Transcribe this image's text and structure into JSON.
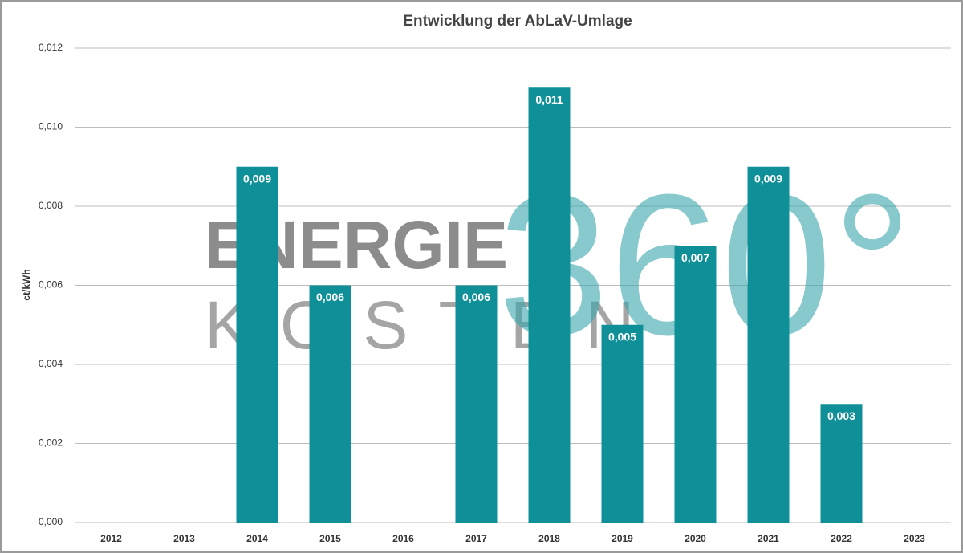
{
  "chart_data": {
    "type": "bar",
    "title": "Entwicklung der AbLaV-Umlage",
    "y_label": "ct/kWh",
    "categories": [
      "2012",
      "2013",
      "2014",
      "2015",
      "2016",
      "2017",
      "2018",
      "2019",
      "2020",
      "2021",
      "2022",
      "2023"
    ],
    "values": [
      0,
      0,
      0.009,
      0.006,
      0,
      0.006,
      0.011,
      0.005,
      0.007,
      0.009,
      0.003,
      0
    ],
    "value_labels": [
      null,
      null,
      "0,009",
      "0,006",
      null,
      "0,006",
      "0,011",
      "0,005",
      "0,007",
      "0,009",
      "0,003",
      null
    ],
    "color": "#0f9098",
    "ylim": [
      0,
      0.012
    ],
    "yticks": [
      {
        "value": 0,
        "label": "0,000"
      },
      {
        "value": 0.002,
        "label": "0,002"
      },
      {
        "value": 0.004,
        "label": "0,004"
      },
      {
        "value": 0.006,
        "label": "0,006"
      },
      {
        "value": 0.008,
        "label": "0,008"
      },
      {
        "value": 0.01,
        "label": "0,010"
      },
      {
        "value": 0.012,
        "label": "0,012"
      }
    ],
    "grid": true,
    "watermark": {
      "line1": "ENERGIE",
      "line2": "KOSTEN",
      "mark": "360°"
    }
  }
}
